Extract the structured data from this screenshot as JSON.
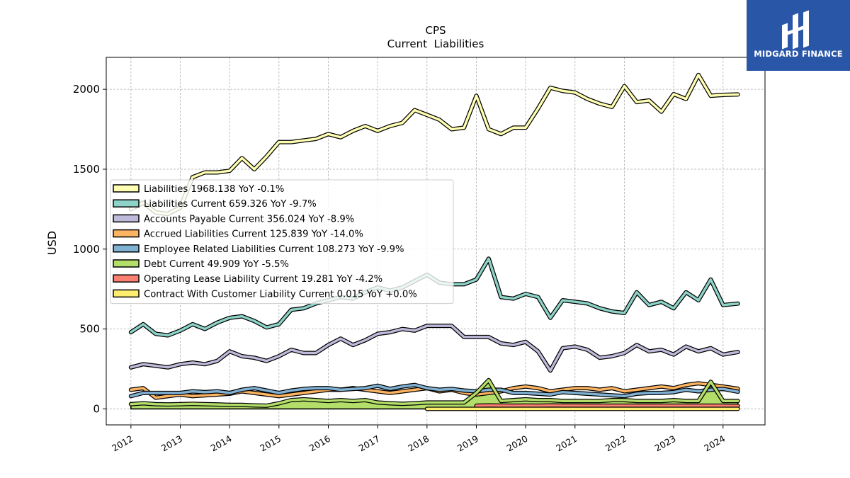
{
  "chart_data": {
    "type": "line",
    "title": "CPS",
    "subtitle": "Current  Liabilities",
    "ylabel": "USD",
    "xlabel": "",
    "xlim": [
      2011.5,
      2024.85
    ],
    "ylim": [
      -100,
      2200
    ],
    "yticks": [
      0,
      500,
      1000,
      1500,
      2000
    ],
    "xticks": [
      2012,
      2013,
      2014,
      2015,
      2016,
      2017,
      2018,
      2019,
      2020,
      2021,
      2022,
      2023,
      2024
    ],
    "grid": true,
    "legend_position": "center-left",
    "series": [
      {
        "name": "Liabilities  1968.138 YoY -0.1%",
        "color": "#ffffb3",
        "x": [
          2012.0,
          2012.25,
          2012.5,
          2012.75,
          2013.0,
          2013.25,
          2013.5,
          2013.75,
          2014.0,
          2014.25,
          2014.5,
          2014.75,
          2015.0,
          2015.25,
          2015.5,
          2015.75,
          2016.0,
          2016.25,
          2016.5,
          2016.75,
          2017.0,
          2017.25,
          2017.5,
          2017.75,
          2018.0,
          2018.25,
          2018.5,
          2018.75,
          2019.0,
          2019.25,
          2019.5,
          2019.75,
          2020.0,
          2020.25,
          2020.5,
          2020.75,
          2021.0,
          2021.25,
          2021.5,
          2021.75,
          2022.0,
          2022.25,
          2022.5,
          2022.75,
          2023.0,
          2023.25,
          2023.5,
          2023.75,
          2024.0,
          2024.3
        ],
        "values": [
          1250,
          1290,
          1230,
          1220,
          1260,
          1450,
          1480,
          1480,
          1490,
          1570,
          1500,
          1580,
          1670,
          1670,
          1680,
          1690,
          1720,
          1700,
          1740,
          1770,
          1740,
          1770,
          1790,
          1870,
          1840,
          1810,
          1750,
          1760,
          1960,
          1750,
          1720,
          1760,
          1760,
          1880,
          2010,
          1990,
          1980,
          1940,
          1910,
          1890,
          2020,
          1920,
          1930,
          1860,
          1970,
          1940,
          2090,
          1960,
          1965,
          1968
        ]
      },
      {
        "name": "Liabilities Current  659.326 YoY -9.7%",
        "color": "#8dd3c7",
        "x": [
          2012.0,
          2012.25,
          2012.5,
          2012.75,
          2013.0,
          2013.25,
          2013.5,
          2013.75,
          2014.0,
          2014.25,
          2014.5,
          2014.75,
          2015.0,
          2015.25,
          2015.5,
          2015.75,
          2016.0,
          2016.25,
          2016.5,
          2016.75,
          2017.0,
          2017.25,
          2017.5,
          2017.75,
          2018.0,
          2018.25,
          2018.5,
          2018.75,
          2019.0,
          2019.25,
          2019.5,
          2019.75,
          2020.0,
          2020.25,
          2020.5,
          2020.75,
          2021.0,
          2021.25,
          2021.5,
          2021.75,
          2022.0,
          2022.25,
          2022.5,
          2022.75,
          2023.0,
          2023.25,
          2023.5,
          2023.75,
          2024.0,
          2024.3
        ],
        "values": [
          480,
          530,
          470,
          460,
          490,
          530,
          500,
          540,
          570,
          580,
          550,
          510,
          530,
          620,
          630,
          660,
          680,
          700,
          690,
          730,
          760,
          740,
          760,
          800,
          840,
          790,
          780,
          780,
          810,
          940,
          700,
          690,
          720,
          700,
          570,
          680,
          670,
          660,
          630,
          610,
          600,
          730,
          650,
          670,
          630,
          730,
          680,
          810,
          650,
          659
        ]
      },
      {
        "name": "Accounts Payable Current  356.024 YoY -8.9%",
        "color": "#bebada",
        "x": [
          2012.0,
          2012.25,
          2012.5,
          2012.75,
          2013.0,
          2013.25,
          2013.5,
          2013.75,
          2014.0,
          2014.25,
          2014.5,
          2014.75,
          2015.0,
          2015.25,
          2015.5,
          2015.75,
          2016.0,
          2016.25,
          2016.5,
          2016.75,
          2017.0,
          2017.25,
          2017.5,
          2017.75,
          2018.0,
          2018.25,
          2018.5,
          2018.75,
          2019.0,
          2019.25,
          2019.5,
          2019.75,
          2020.0,
          2020.25,
          2020.5,
          2020.75,
          2021.0,
          2021.25,
          2021.5,
          2021.75,
          2022.0,
          2022.25,
          2022.5,
          2022.75,
          2023.0,
          2023.25,
          2023.5,
          2023.75,
          2024.0,
          2024.3
        ],
        "values": [
          260,
          280,
          270,
          260,
          280,
          290,
          280,
          300,
          360,
          330,
          320,
          300,
          330,
          370,
          350,
          350,
          400,
          440,
          400,
          430,
          470,
          480,
          500,
          490,
          520,
          520,
          520,
          450,
          450,
          450,
          410,
          400,
          420,
          360,
          240,
          380,
          390,
          370,
          320,
          330,
          350,
          400,
          360,
          370,
          340,
          390,
          360,
          380,
          340,
          356
        ]
      },
      {
        "name": "Accrued Liabilities Current  125.839 YoY -14.0%",
        "color": "#fdb462",
        "x": [
          2012.0,
          2012.25,
          2012.5,
          2012.75,
          2013.0,
          2013.25,
          2013.5,
          2013.75,
          2014.0,
          2014.25,
          2014.5,
          2014.75,
          2015.0,
          2015.25,
          2015.5,
          2015.75,
          2016.0,
          2016.25,
          2016.5,
          2016.75,
          2017.0,
          2017.25,
          2017.5,
          2017.75,
          2018.0,
          2018.25,
          2018.5,
          2018.75,
          2019.0,
          2019.25,
          2019.5,
          2019.75,
          2020.0,
          2020.25,
          2020.5,
          2020.75,
          2021.0,
          2021.25,
          2021.5,
          2021.75,
          2022.0,
          2022.25,
          2022.5,
          2022.75,
          2023.0,
          2023.25,
          2023.5,
          2023.75,
          2024.0,
          2024.3
        ],
        "values": [
          120,
          130,
          70,
          80,
          90,
          80,
          85,
          90,
          95,
          110,
          100,
          90,
          80,
          90,
          100,
          110,
          120,
          120,
          130,
          120,
          110,
          100,
          110,
          120,
          130,
          110,
          120,
          100,
          90,
          100,
          110,
          130,
          140,
          130,
          110,
          120,
          130,
          130,
          120,
          130,
          110,
          120,
          130,
          140,
          130,
          150,
          160,
          150,
          140,
          126
        ]
      },
      {
        "name": "Employee Related Liabilities Current  108.273 YoY -9.9%",
        "color": "#80b1d3",
        "x": [
          2012.0,
          2012.25,
          2012.5,
          2012.75,
          2013.0,
          2013.25,
          2013.5,
          2013.75,
          2014.0,
          2014.25,
          2014.5,
          2014.75,
          2015.0,
          2015.25,
          2015.5,
          2015.75,
          2016.0,
          2016.25,
          2016.5,
          2016.75,
          2017.0,
          2017.25,
          2017.5,
          2017.75,
          2018.0,
          2018.25,
          2018.5,
          2018.75,
          2019.0,
          2019.25,
          2019.5,
          2019.75,
          2020.0,
          2020.25,
          2020.5,
          2020.75,
          2021.0,
          2021.25,
          2021.5,
          2021.75,
          2022.0,
          2022.25,
          2022.5,
          2022.75,
          2023.0,
          2023.25,
          2023.5,
          2023.75,
          2024.0,
          2024.3
        ],
        "values": [
          80,
          100,
          100,
          100,
          100,
          110,
          105,
          110,
          100,
          120,
          130,
          115,
          100,
          115,
          125,
          130,
          130,
          120,
          125,
          130,
          145,
          125,
          140,
          150,
          130,
          120,
          125,
          115,
          110,
          120,
          120,
          100,
          100,
          95,
          90,
          105,
          100,
          95,
          90,
          85,
          80,
          95,
          100,
          100,
          105,
          120,
          110,
          120,
          125,
          108
        ]
      },
      {
        "name": "Debt Current  49.909 YoY -5.5%",
        "color": "#b3de69",
        "x": [
          2012.0,
          2012.25,
          2012.5,
          2012.75,
          2013.0,
          2013.25,
          2013.5,
          2013.75,
          2014.0,
          2014.25,
          2014.5,
          2014.75,
          2015.0,
          2015.25,
          2015.5,
          2015.75,
          2016.0,
          2016.25,
          2016.5,
          2016.75,
          2017.0,
          2017.25,
          2017.5,
          2017.75,
          2018.0,
          2018.25,
          2018.5,
          2018.75,
          2019.0,
          2019.25,
          2019.5,
          2019.75,
          2020.0,
          2020.25,
          2020.5,
          2020.75,
          2021.0,
          2021.25,
          2021.5,
          2021.75,
          2022.0,
          2022.25,
          2022.5,
          2022.75,
          2023.0,
          2023.25,
          2023.5,
          2023.75,
          2024.0,
          2024.3
        ],
        "values": [
          30,
          35,
          30,
          28,
          30,
          32,
          30,
          28,
          25,
          25,
          22,
          20,
          35,
          55,
          60,
          55,
          50,
          55,
          50,
          55,
          40,
          35,
          32,
          35,
          40,
          40,
          40,
          40,
          100,
          180,
          50,
          55,
          60,
          55,
          55,
          50,
          50,
          50,
          50,
          55,
          55,
          50,
          50,
          50,
          55,
          50,
          50,
          170,
          50,
          50
        ]
      },
      {
        "name": "Operating Lease Liability Current  19.281 YoY -4.2%",
        "color": "#fb8072",
        "x": [
          2019.0,
          2019.25,
          2019.5,
          2019.75,
          2020.0,
          2020.25,
          2020.5,
          2020.75,
          2021.0,
          2021.25,
          2021.5,
          2021.75,
          2022.0,
          2022.25,
          2022.5,
          2022.75,
          2023.0,
          2023.25,
          2023.5,
          2023.75,
          2024.0,
          2024.3
        ],
        "values": [
          20,
          22,
          21,
          20,
          21,
          20,
          22,
          21,
          21,
          20,
          20,
          20,
          20,
          20,
          20,
          20,
          20,
          20,
          20,
          20,
          20,
          19.281
        ]
      },
      {
        "name": "Contract With Customer Liability Current  0.015 YoY +0.0%",
        "color": "#ffed6f",
        "x": [
          2018.0,
          2018.5,
          2019.0,
          2019.5,
          2020.0,
          2020.5,
          2021.0,
          2021.5,
          2022.0,
          2022.5,
          2023.0,
          2023.5,
          2024.0,
          2024.3
        ],
        "values": [
          0.015,
          0.015,
          0.015,
          0.015,
          0.015,
          0.015,
          0.015,
          0.015,
          0.015,
          0.015,
          0.015,
          0.015,
          0.015,
          0.015
        ]
      }
    ]
  },
  "logo": {
    "text": "MIDGARD FINANCE",
    "background": "#2a56a8"
  }
}
